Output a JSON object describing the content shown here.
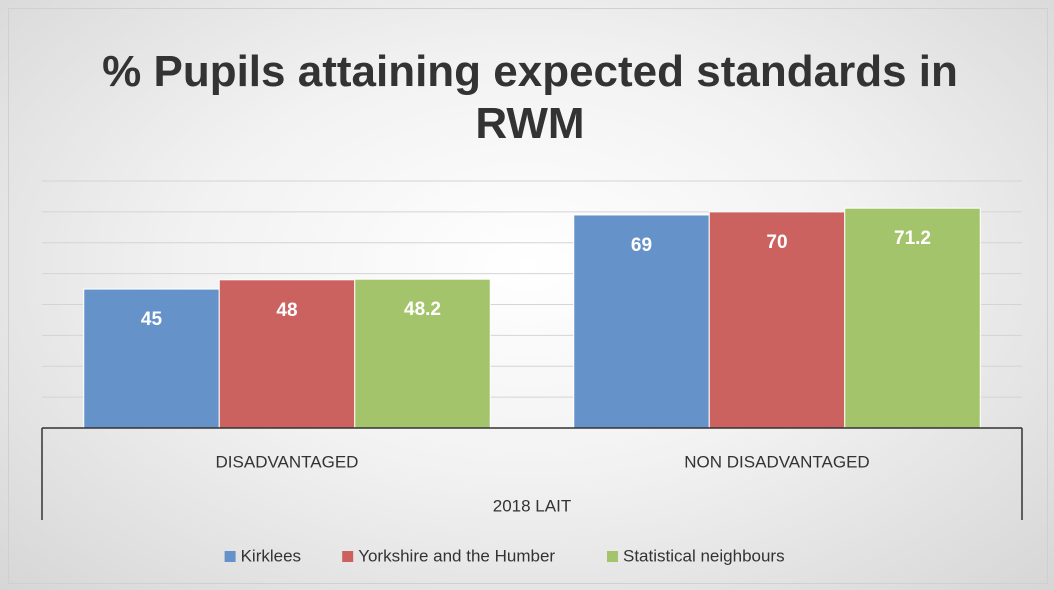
{
  "chart_data": {
    "type": "bar",
    "title": "% Pupils attaining expected standards in RWM",
    "categories": [
      "DISADVANTAGED",
      "NON DISADVANTAGED"
    ],
    "category_group": "2018 LAIT",
    "series": [
      {
        "name": "Kirklees",
        "color": "#6692ca",
        "values": [
          45,
          69
        ]
      },
      {
        "name": "Yorkshire and the Humber",
        "color": "#cb6260",
        "values": [
          48,
          70
        ]
      },
      {
        "name": "Statistical neighbours",
        "color": "#a4c46b",
        "values": [
          48.2,
          71.2
        ]
      }
    ],
    "ylim": [
      0,
      80
    ],
    "yticks": [
      0,
      10,
      20,
      30,
      40,
      50,
      60,
      70,
      80
    ],
    "grid": true,
    "legend": "bottom"
  }
}
